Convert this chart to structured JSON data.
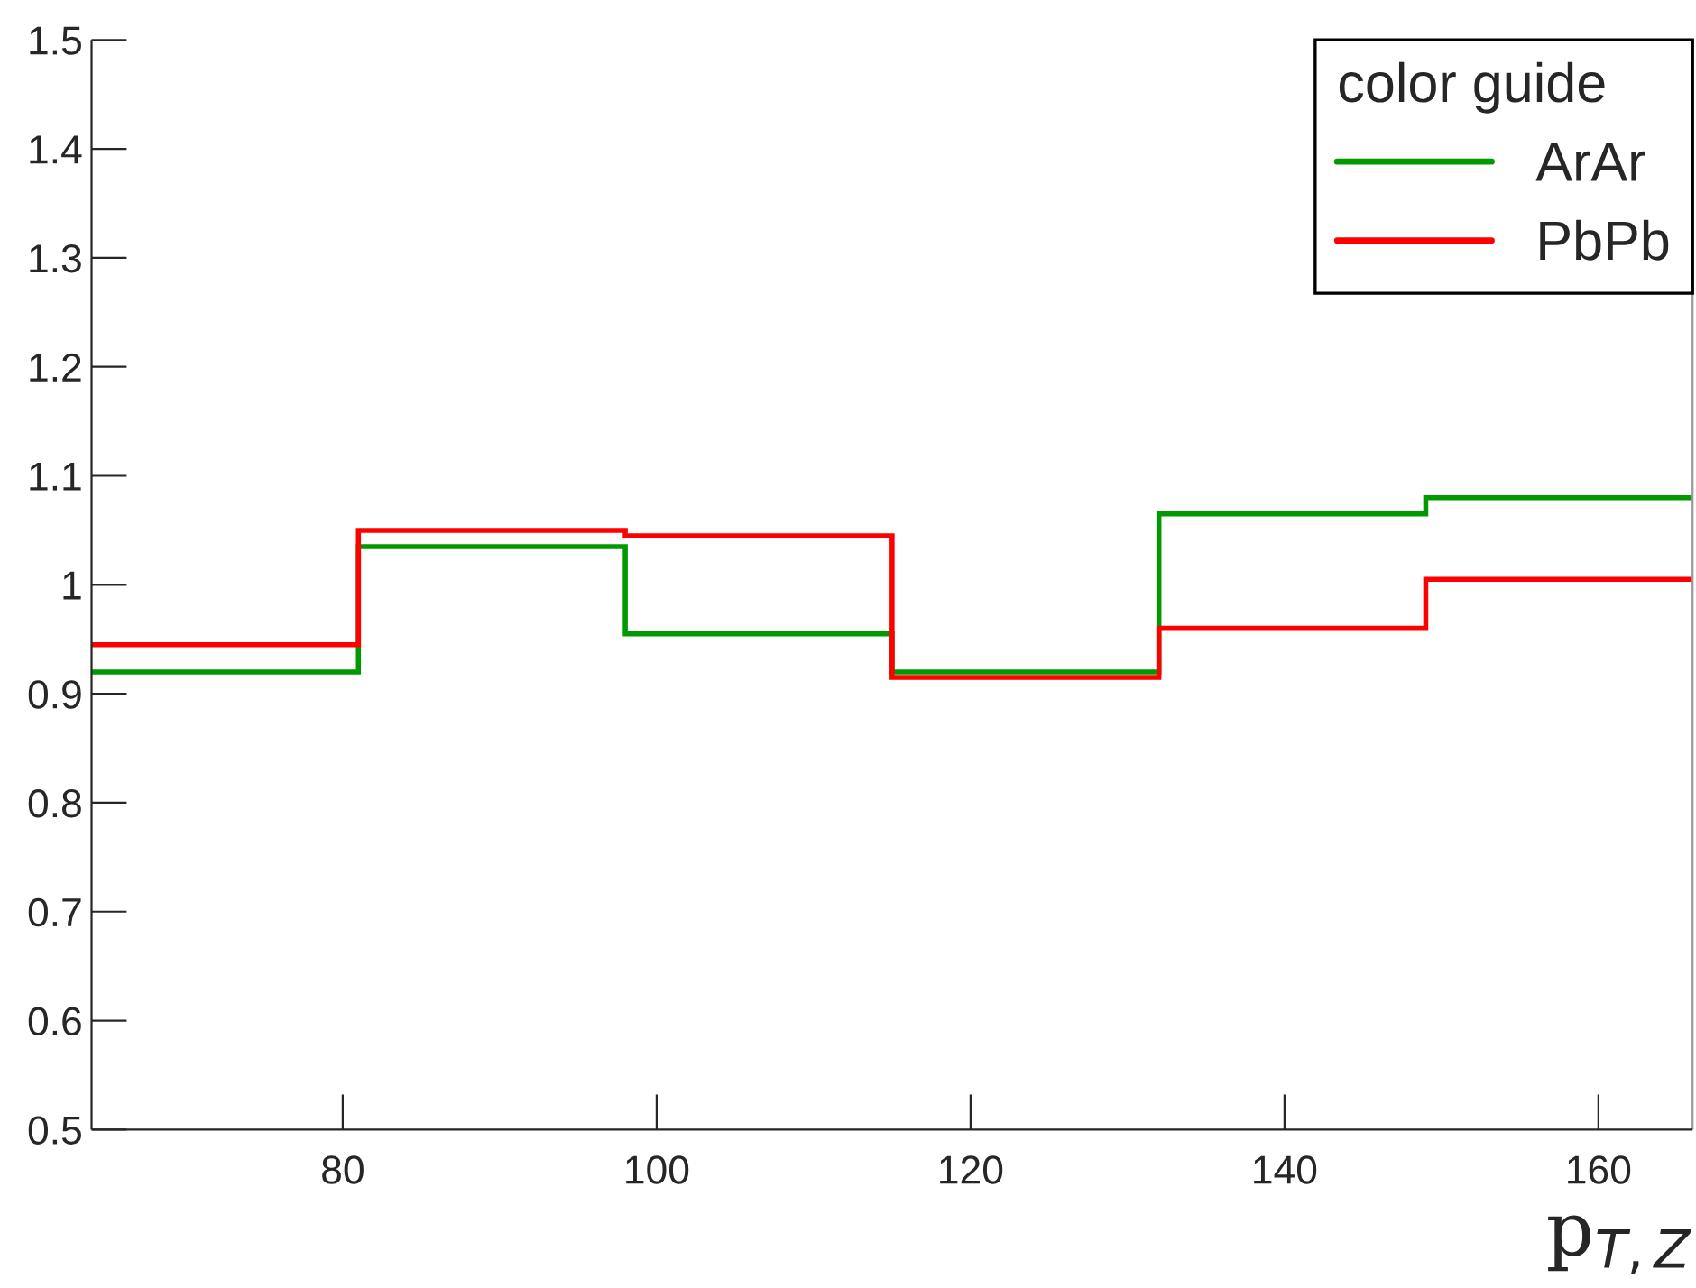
{
  "chart_data": {
    "type": "histogram",
    "xlabel": "p$_{T,Z}$",
    "legend_title": "color guide",
    "bins": [
      64,
      81,
      98,
      115,
      132,
      149,
      166
    ],
    "series": [
      {
        "name": "ArAr",
        "color": "#009900",
        "values": [
          0.92,
          1.035,
          0.955,
          0.92,
          1.065,
          1.08
        ]
      },
      {
        "name": "PbPb",
        "color": "#ff0000",
        "values": [
          0.945,
          1.05,
          1.045,
          0.915,
          0.96,
          1.005
        ]
      }
    ],
    "xlim": [
      64,
      166
    ],
    "ylim": [
      0.5,
      1.5
    ],
    "xticks": [
      80,
      100,
      120,
      140,
      160
    ],
    "yticks": [
      0.5,
      0.6,
      0.7,
      0.8,
      0.9,
      1,
      1.1,
      1.2,
      1.3,
      1.4,
      1.5
    ],
    "grid": false,
    "legend": "top right"
  }
}
